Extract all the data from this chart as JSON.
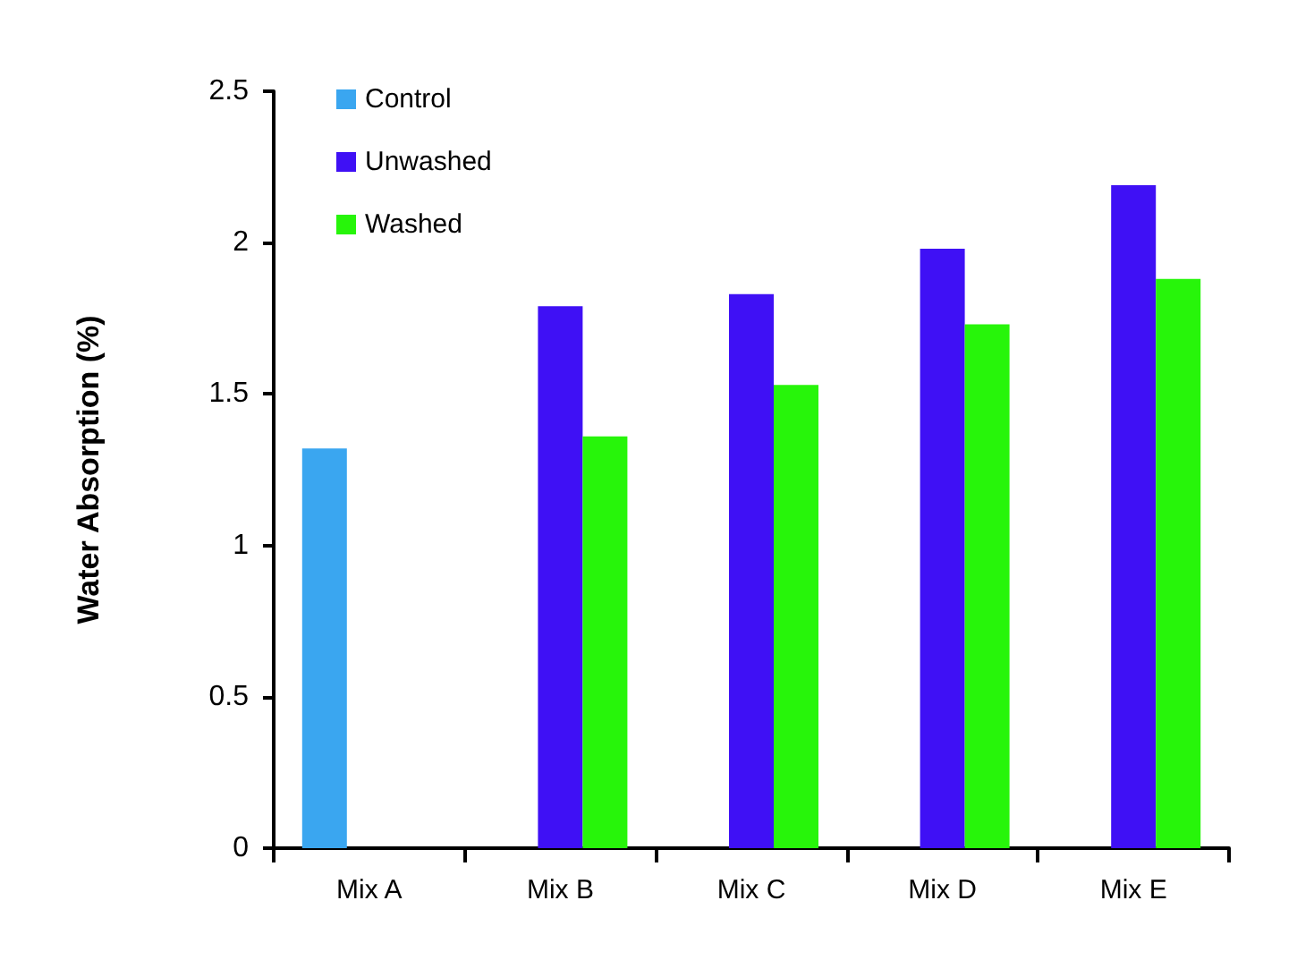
{
  "chart_data": {
    "type": "bar",
    "ylabel": "Water Absorption (%)",
    "categories": [
      "Mix A",
      "Mix B",
      "Mix C",
      "Mix D",
      "Mix E"
    ],
    "series": [
      {
        "name": "Control",
        "color": "#3aa6f0",
        "values": [
          1.32,
          null,
          null,
          null,
          null
        ]
      },
      {
        "name": "Unwashed",
        "color": "#3f10f5",
        "values": [
          null,
          1.79,
          1.83,
          1.98,
          2.19
        ]
      },
      {
        "name": "Washed",
        "color": "#27f50a",
        "values": [
          null,
          1.36,
          1.53,
          1.73,
          1.88
        ]
      }
    ],
    "ylim": [
      0,
      2.5
    ],
    "yticks": [
      0,
      0.5,
      1,
      1.5,
      2,
      2.5
    ],
    "grid": false,
    "legend": "top left"
  }
}
